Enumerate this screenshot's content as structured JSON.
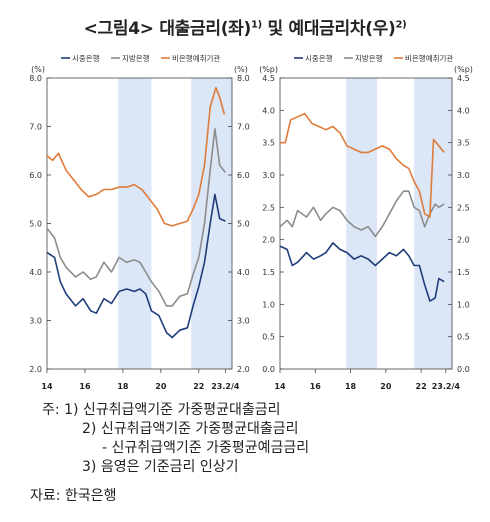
{
  "title": {
    "prefix": "<그림4>",
    "main": "대출금리(좌)",
    "sup1": "1)",
    "mid": "및 예대금리차(우)",
    "sup2": "2)"
  },
  "colors": {
    "commercial": "#1f3d7a",
    "regional": "#8c8c8c",
    "nonbank": "#e07b39",
    "shade": "#dbe6f7"
  },
  "chart_data": [
    {
      "type": "line",
      "x_ticks": [
        "14",
        "16",
        "18",
        "20",
        "22",
        "23.2/4"
      ],
      "unit_left": "(%)",
      "unit_right": "(%)",
      "ylim": [
        2.0,
        8.0
      ],
      "y_ticks": [
        "2.0",
        "3.0",
        "4.0",
        "5.0",
        "6.0",
        "7.0",
        "8.0"
      ],
      "shaded": [
        [
          2017.75,
          2019.5
        ],
        [
          2021.6,
          2023.75
        ]
      ],
      "series": [
        {
          "name": "시중은행",
          "key": "commercial",
          "points": [
            [
              2014.0,
              4.4
            ],
            [
              2014.4,
              4.3
            ],
            [
              2014.7,
              3.8
            ],
            [
              2015.0,
              3.55
            ],
            [
              2015.5,
              3.3
            ],
            [
              2015.9,
              3.45
            ],
            [
              2016.3,
              3.2
            ],
            [
              2016.6,
              3.15
            ],
            [
              2017.0,
              3.45
            ],
            [
              2017.4,
              3.35
            ],
            [
              2017.8,
              3.6
            ],
            [
              2018.2,
              3.65
            ],
            [
              2018.6,
              3.6
            ],
            [
              2018.9,
              3.65
            ],
            [
              2019.2,
              3.55
            ],
            [
              2019.5,
              3.2
            ],
            [
              2019.9,
              3.1
            ],
            [
              2020.3,
              2.75
            ],
            [
              2020.6,
              2.65
            ],
            [
              2021.0,
              2.8
            ],
            [
              2021.4,
              2.85
            ],
            [
              2021.7,
              3.3
            ],
            [
              2022.0,
              3.7
            ],
            [
              2022.3,
              4.2
            ],
            [
              2022.6,
              5.0
            ],
            [
              2022.85,
              5.6
            ],
            [
              2023.1,
              5.1
            ],
            [
              2023.4,
              5.05
            ]
          ]
        },
        {
          "name": "지방은행",
          "key": "regional",
          "points": [
            [
              2014.0,
              4.9
            ],
            [
              2014.4,
              4.7
            ],
            [
              2014.7,
              4.3
            ],
            [
              2015.0,
              4.1
            ],
            [
              2015.5,
              3.9
            ],
            [
              2015.9,
              4.0
            ],
            [
              2016.3,
              3.85
            ],
            [
              2016.6,
              3.9
            ],
            [
              2017.0,
              4.2
            ],
            [
              2017.4,
              4.0
            ],
            [
              2017.8,
              4.3
            ],
            [
              2018.2,
              4.2
            ],
            [
              2018.6,
              4.25
            ],
            [
              2018.9,
              4.2
            ],
            [
              2019.2,
              4.0
            ],
            [
              2019.5,
              3.8
            ],
            [
              2019.9,
              3.6
            ],
            [
              2020.3,
              3.3
            ],
            [
              2020.6,
              3.3
            ],
            [
              2021.0,
              3.5
            ],
            [
              2021.4,
              3.55
            ],
            [
              2021.7,
              3.95
            ],
            [
              2022.0,
              4.3
            ],
            [
              2022.3,
              5.0
            ],
            [
              2022.6,
              6.1
            ],
            [
              2022.85,
              6.95
            ],
            [
              2023.1,
              6.2
            ],
            [
              2023.4,
              6.05
            ]
          ]
        },
        {
          "name": "비은행예취기관",
          "key": "nonbank",
          "points": [
            [
              2014.0,
              6.4
            ],
            [
              2014.3,
              6.3
            ],
            [
              2014.6,
              6.45
            ],
            [
              2015.0,
              6.1
            ],
            [
              2015.4,
              5.9
            ],
            [
              2015.8,
              5.7
            ],
            [
              2016.2,
              5.55
            ],
            [
              2016.6,
              5.6
            ],
            [
              2017.0,
              5.7
            ],
            [
              2017.4,
              5.7
            ],
            [
              2017.8,
              5.75
            ],
            [
              2018.2,
              5.75
            ],
            [
              2018.6,
              5.8
            ],
            [
              2019.0,
              5.7
            ],
            [
              2019.4,
              5.5
            ],
            [
              2019.8,
              5.3
            ],
            [
              2020.2,
              5.0
            ],
            [
              2020.6,
              4.95
            ],
            [
              2021.0,
              5.0
            ],
            [
              2021.4,
              5.05
            ],
            [
              2021.7,
              5.3
            ],
            [
              2022.0,
              5.6
            ],
            [
              2022.3,
              6.2
            ],
            [
              2022.6,
              7.4
            ],
            [
              2022.9,
              7.8
            ],
            [
              2023.1,
              7.6
            ],
            [
              2023.35,
              7.25
            ]
          ]
        }
      ]
    },
    {
      "type": "line",
      "x_ticks": [
        "14",
        "16",
        "18",
        "20",
        "22",
        "23.2/4"
      ],
      "unit_left": "(%p)",
      "unit_right": "(%p)",
      "ylim": [
        0.0,
        4.5
      ],
      "y_ticks": [
        "0.0",
        "0.5",
        "1.0",
        "1.5",
        "2.0",
        "2.5",
        "3.0",
        "3.5",
        "4.0",
        "4.5"
      ],
      "shaded": [
        [
          2017.75,
          2019.5
        ],
        [
          2021.6,
          2023.75
        ]
      ],
      "series": [
        {
          "name": "시중은행",
          "key": "commercial",
          "points": [
            [
              2014.0,
              1.9
            ],
            [
              2014.4,
              1.85
            ],
            [
              2014.7,
              1.6
            ],
            [
              2015.0,
              1.65
            ],
            [
              2015.5,
              1.8
            ],
            [
              2015.9,
              1.7
            ],
            [
              2016.3,
              1.75
            ],
            [
              2016.6,
              1.8
            ],
            [
              2017.0,
              1.95
            ],
            [
              2017.4,
              1.85
            ],
            [
              2017.8,
              1.8
            ],
            [
              2018.2,
              1.7
            ],
            [
              2018.6,
              1.75
            ],
            [
              2019.0,
              1.7
            ],
            [
              2019.4,
              1.6
            ],
            [
              2019.8,
              1.7
            ],
            [
              2020.2,
              1.8
            ],
            [
              2020.6,
              1.75
            ],
            [
              2021.0,
              1.85
            ],
            [
              2021.3,
              1.75
            ],
            [
              2021.6,
              1.6
            ],
            [
              2021.9,
              1.6
            ],
            [
              2022.2,
              1.3
            ],
            [
              2022.5,
              1.05
            ],
            [
              2022.8,
              1.1
            ],
            [
              2023.0,
              1.4
            ],
            [
              2023.3,
              1.35
            ]
          ]
        },
        {
          "name": "지방은행",
          "key": "regional",
          "points": [
            [
              2014.0,
              2.2
            ],
            [
              2014.4,
              2.3
            ],
            [
              2014.7,
              2.2
            ],
            [
              2015.0,
              2.45
            ],
            [
              2015.5,
              2.35
            ],
            [
              2015.9,
              2.5
            ],
            [
              2016.3,
              2.3
            ],
            [
              2016.6,
              2.4
            ],
            [
              2017.0,
              2.5
            ],
            [
              2017.4,
              2.45
            ],
            [
              2017.8,
              2.3
            ],
            [
              2018.2,
              2.2
            ],
            [
              2018.6,
              2.15
            ],
            [
              2019.0,
              2.2
            ],
            [
              2019.4,
              2.05
            ],
            [
              2019.8,
              2.2
            ],
            [
              2020.2,
              2.4
            ],
            [
              2020.6,
              2.6
            ],
            [
              2021.0,
              2.75
            ],
            [
              2021.3,
              2.75
            ],
            [
              2021.6,
              2.5
            ],
            [
              2021.9,
              2.45
            ],
            [
              2022.2,
              2.2
            ],
            [
              2022.5,
              2.4
            ],
            [
              2022.8,
              2.55
            ],
            [
              2023.0,
              2.5
            ],
            [
              2023.3,
              2.55
            ]
          ]
        },
        {
          "name": "비은행예취기관",
          "key": "nonbank",
          "points": [
            [
              2014.0,
              3.5
            ],
            [
              2014.3,
              3.5
            ],
            [
              2014.6,
              3.85
            ],
            [
              2015.0,
              3.9
            ],
            [
              2015.4,
              3.95
            ],
            [
              2015.8,
              3.8
            ],
            [
              2016.2,
              3.75
            ],
            [
              2016.6,
              3.7
            ],
            [
              2017.0,
              3.75
            ],
            [
              2017.4,
              3.65
            ],
            [
              2017.8,
              3.45
            ],
            [
              2018.2,
              3.4
            ],
            [
              2018.6,
              3.35
            ],
            [
              2019.0,
              3.35
            ],
            [
              2019.4,
              3.4
            ],
            [
              2019.8,
              3.45
            ],
            [
              2020.2,
              3.4
            ],
            [
              2020.6,
              3.25
            ],
            [
              2021.0,
              3.15
            ],
            [
              2021.3,
              3.1
            ],
            [
              2021.6,
              2.9
            ],
            [
              2021.9,
              2.75
            ],
            [
              2022.2,
              2.4
            ],
            [
              2022.5,
              2.35
            ],
            [
              2022.7,
              3.55
            ],
            [
              2023.0,
              3.45
            ],
            [
              2023.3,
              3.35
            ]
          ]
        }
      ]
    }
  ],
  "notes": {
    "prefix": "주:",
    "n1": "1) 신규취급액기준 가중평균대출금리",
    "n2": "2) 신규취급액기준 가중평균대출금리",
    "n2b": "- 신규취급액기준 가중평균예금금리",
    "n3": "3) 음영은 기준금리 인상기"
  },
  "source": "자료: 한국은행"
}
